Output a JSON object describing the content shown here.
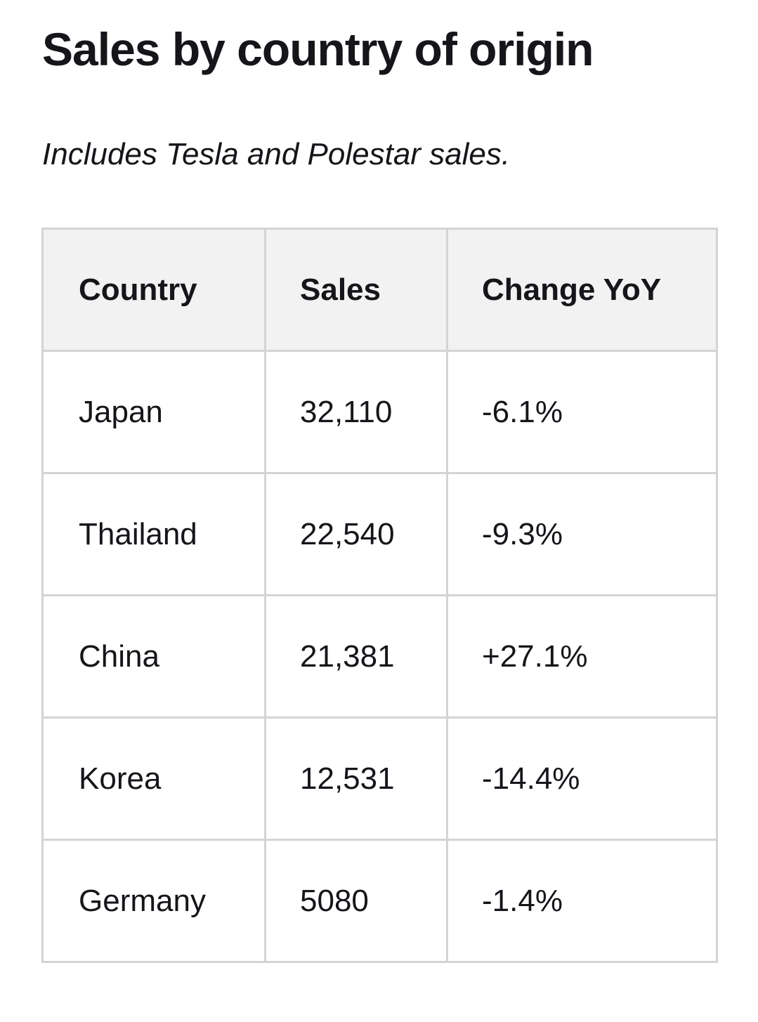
{
  "title": "Sales by country of origin",
  "subtitle": "Includes Tesla and Polestar sales.",
  "chart_data": {
    "type": "table",
    "title": "Sales by country of origin",
    "subtitle": "Includes Tesla and Polestar sales.",
    "columns": [
      "Country",
      "Sales",
      "Change YoY"
    ],
    "rows": [
      [
        "Japan",
        "32,110",
        "-6.1%"
      ],
      [
        "Thailand",
        "22,540",
        "-9.3%"
      ],
      [
        "China",
        "21,381",
        "+27.1%"
      ],
      [
        "Korea",
        "12,531",
        "-14.4%"
      ],
      [
        "Germany",
        "5080",
        "-1.4%"
      ]
    ]
  },
  "colors": {
    "text": "#15151a",
    "header_background": "#f2f2f2",
    "border": "#d4d4d6",
    "background": "#ffffff"
  }
}
